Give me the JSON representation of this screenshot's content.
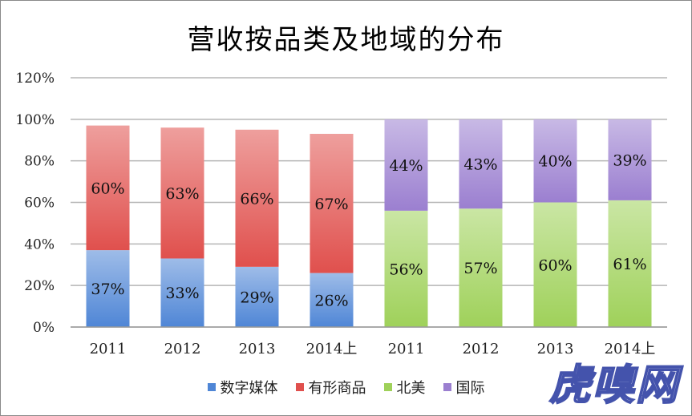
{
  "chart_data": {
    "type": "bar",
    "stacked": true,
    "title": "营收按品类及地域的分布",
    "categories": [
      "2011",
      "2012",
      "2013",
      "2014上",
      "2011",
      "2012",
      "2013",
      "2014上"
    ],
    "series": [
      {
        "name": "数字媒体",
        "color": "#4f86d6",
        "values": [
          37,
          33,
          29,
          26,
          null,
          null,
          null,
          null
        ],
        "labels": [
          "37%",
          "33%",
          "29%",
          "26%",
          "",
          "",
          "",
          ""
        ]
      },
      {
        "name": "有形商品",
        "color": "#e0504d",
        "values": [
          60,
          63,
          66,
          67,
          null,
          null,
          null,
          null
        ],
        "labels": [
          "60%",
          "63%",
          "66%",
          "67%",
          "",
          "",
          "",
          ""
        ]
      },
      {
        "name": "北美",
        "color": "#9fd15a",
        "values": [
          null,
          null,
          null,
          null,
          56,
          57,
          60,
          61
        ],
        "labels": [
          "",
          "",
          "",
          "",
          "56%",
          "57%",
          "60%",
          "61%"
        ]
      },
      {
        "name": "国际",
        "color": "#9b7fd0",
        "values": [
          null,
          null,
          null,
          null,
          44,
          43,
          40,
          39
        ],
        "labels": [
          "",
          "",
          "",
          "",
          "44%",
          "43%",
          "40%",
          "39%"
        ]
      }
    ],
    "ylim": [
      0,
      120
    ],
    "yticks": [
      "0%",
      "20%",
      "40%",
      "60%",
      "80%",
      "100%",
      "120%"
    ],
    "grid": true,
    "legend_position": "bottom"
  },
  "watermark": "虎嗅网"
}
